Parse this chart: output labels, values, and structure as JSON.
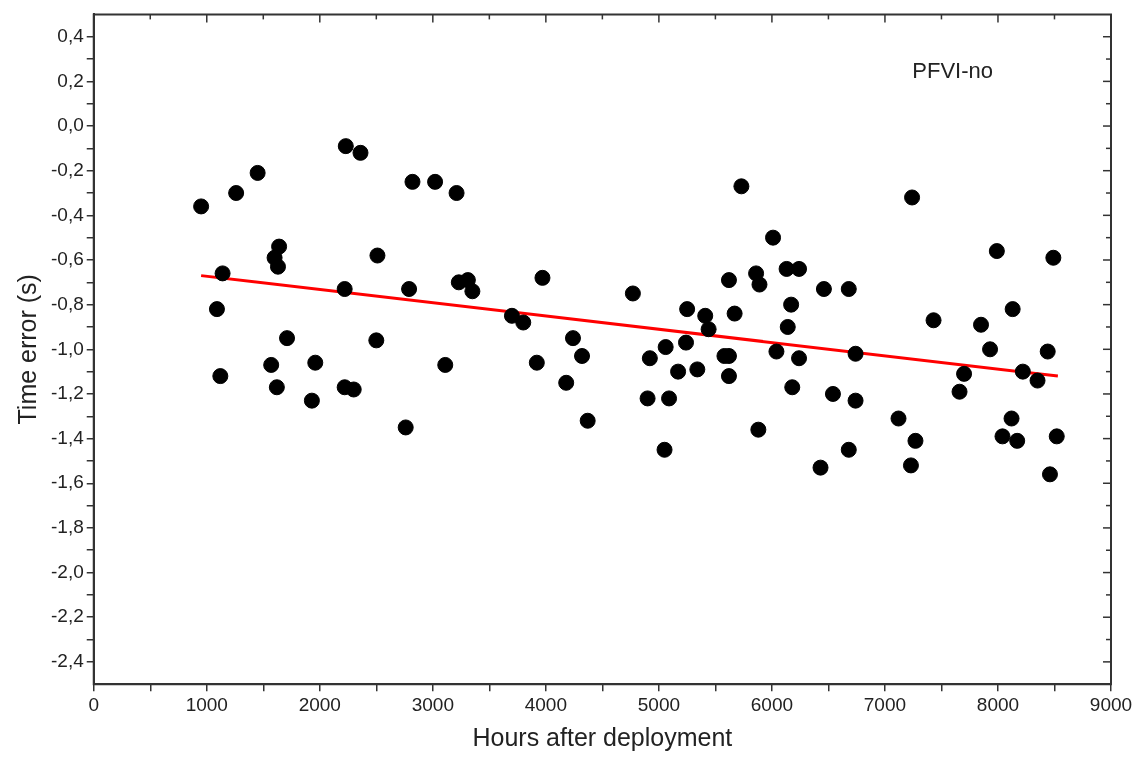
{
  "chart_data": {
    "type": "scatter",
    "xlabel": "Hours after deployment",
    "ylabel": "Time error (s)",
    "annotations": [
      "PFVI-no"
    ],
    "marker": "circle",
    "grid": false,
    "legend": false,
    "xlim": [
      0,
      9000
    ],
    "ylim": [
      -2.5,
      0.5
    ],
    "xticks": [
      0,
      {
        "value": 500,
        "label": null
      },
      1000,
      {
        "value": 1500,
        "label": null
      },
      2000,
      {
        "value": 2500,
        "label": null
      },
      3000,
      {
        "value": 3500,
        "label": null
      },
      4000,
      {
        "value": 4500,
        "label": null
      },
      5000,
      {
        "value": 5500,
        "label": null
      },
      6000,
      {
        "value": 6500,
        "label": null
      },
      7000,
      {
        "value": 7500,
        "label": null
      },
      8000,
      {
        "value": 8500,
        "label": null
      },
      9000
    ],
    "yticks": [
      {
        "value": -2.4,
        "label": "-2,4"
      },
      {
        "value": -2.3,
        "label": null
      },
      {
        "value": -2.2,
        "label": "-2,2"
      },
      {
        "value": -2.1,
        "label": null
      },
      {
        "value": -2.0,
        "label": "-2,0"
      },
      {
        "value": -1.9,
        "label": null
      },
      {
        "value": -1.8,
        "label": "-1,8"
      },
      {
        "value": -1.7,
        "label": null
      },
      {
        "value": -1.6,
        "label": "-1,6"
      },
      {
        "value": -1.5,
        "label": null
      },
      {
        "value": -1.4,
        "label": "-1,4"
      },
      {
        "value": -1.3,
        "label": null
      },
      {
        "value": -1.2,
        "label": "-1,2"
      },
      {
        "value": -1.1,
        "label": null
      },
      {
        "value": -1.0,
        "label": "-1,0"
      },
      {
        "value": -0.9,
        "label": null
      },
      {
        "value": -0.8,
        "label": "-0,8"
      },
      {
        "value": -0.7,
        "label": null
      },
      {
        "value": -0.6,
        "label": "-0,6"
      },
      {
        "value": -0.5,
        "label": null
      },
      {
        "value": -0.4,
        "label": "-0,4"
      },
      {
        "value": -0.3,
        "label": null
      },
      {
        "value": -0.2,
        "label": "-0,2"
      },
      {
        "value": -0.1,
        "label": null
      },
      {
        "value": 0.0,
        "label": "0,0"
      },
      {
        "value": 0.1,
        "label": null
      },
      {
        "value": 0.2,
        "label": "0,2"
      },
      {
        "value": 0.3,
        "label": null
      },
      {
        "value": 0.4,
        "label": "0,4"
      }
    ],
    "series": [
      {
        "color": "#000000",
        "x": [
          950,
          1260,
          1450,
          2230,
          2360,
          2820,
          3020,
          1640,
          1600,
          1630,
          1140,
          2510,
          1090,
          2220,
          2790,
          1710,
          2500,
          1570,
          1960,
          3110,
          1120,
          1620,
          2220,
          2300,
          1930,
          2760,
          3210,
          3230,
          3310,
          3350,
          3970,
          3700,
          3800,
          3920,
          4240,
          4320,
          4180,
          4370,
          4770,
          4920,
          4900,
          5060,
          5050,
          5090,
          5170,
          5250,
          5240,
          5340,
          5410,
          5440,
          5620,
          5580,
          5620,
          5620,
          5670,
          5730,
          5880,
          5860,
          5890,
          6010,
          6130,
          6240,
          6460,
          6680,
          6170,
          6140,
          6040,
          6240,
          6740,
          6180,
          6540,
          6740,
          6430,
          6680,
          7240,
          7120,
          7270,
          7230,
          7430,
          7660,
          7700,
          7850,
          7990,
          7930,
          8130,
          8120,
          8040,
          8170,
          8220,
          8350,
          8440,
          8490,
          8520,
          8460
        ],
        "values": [
          -0.36,
          -0.3,
          -0.21,
          -0.09,
          -0.12,
          -0.25,
          -0.25,
          -0.54,
          -0.59,
          -0.63,
          -0.66,
          -0.58,
          -0.82,
          -0.73,
          -0.73,
          -0.95,
          -0.96,
          -1.07,
          -1.06,
          -1.07,
          -1.12,
          -1.17,
          -1.17,
          -1.18,
          -1.23,
          -1.35,
          -0.3,
          -0.7,
          -0.69,
          -0.74,
          -0.68,
          -0.85,
          -0.88,
          -1.06,
          -0.95,
          -1.03,
          -1.15,
          -1.32,
          -0.75,
          -1.04,
          -1.22,
          -0.99,
          -1.45,
          -1.22,
          -1.1,
          -0.82,
          -0.97,
          -1.09,
          -0.85,
          -0.91,
          -0.69,
          -1.03,
          -1.03,
          -1.12,
          -0.84,
          -0.27,
          -1.36,
          -0.66,
          -0.71,
          -0.5,
          -0.64,
          -0.64,
          -0.73,
          -0.73,
          -0.8,
          -0.9,
          -1.01,
          -1.04,
          -1.02,
          -1.17,
          -1.2,
          -1.23,
          -1.53,
          -1.45,
          -0.32,
          -1.31,
          -1.41,
          -1.52,
          -0.87,
          -1.19,
          -1.11,
          -0.89,
          -0.56,
          -1.0,
          -0.82,
          -1.31,
          -1.39,
          -1.41,
          -1.1,
          -1.14,
          -1.01,
          -0.59,
          -1.39,
          -1.56
        ]
      },
      {
        "type": "line",
        "marker": "none",
        "color": "#ff0000",
        "x": [
          950,
          8530
        ],
        "values": [
          -0.67,
          -1.12
        ]
      }
    ]
  }
}
